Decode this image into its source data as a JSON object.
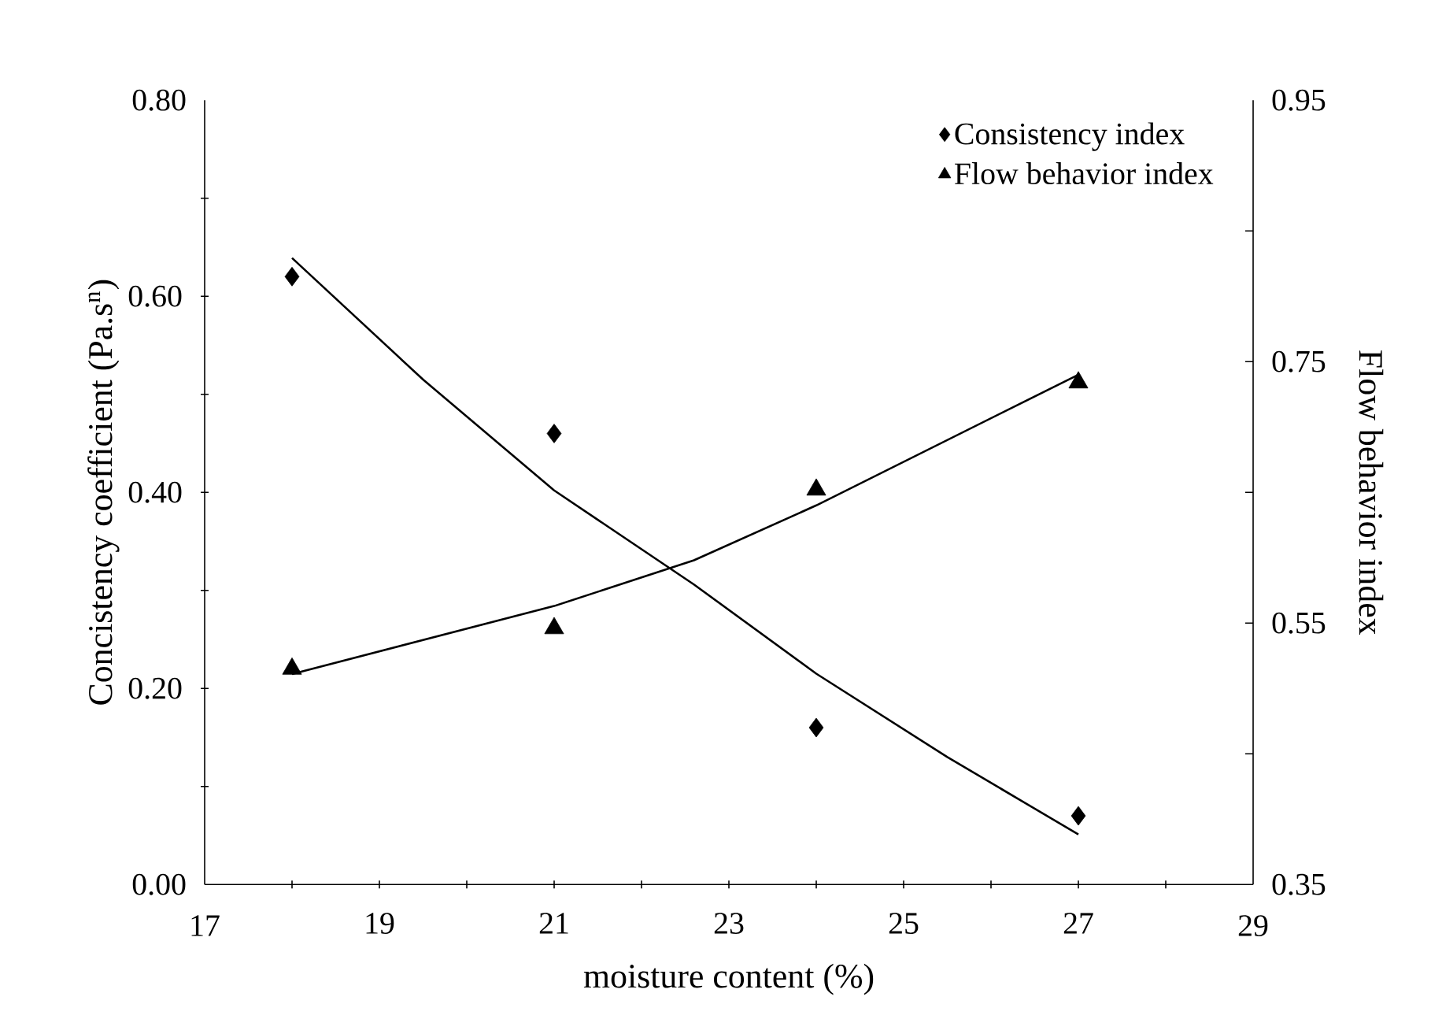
{
  "chart_data": {
    "type": "scatter",
    "xlabel": "moisture content (%)",
    "ylabel": "Concistency coefficient (Pa.s$^{n}$)",
    "y2label": "Flow behavior index",
    "xlim": [
      17,
      29
    ],
    "xticks": [
      17,
      {
        "value": 18,
        "label": null
      },
      19,
      {
        "value": 20,
        "label": null
      },
      21,
      {
        "value": 22,
        "label": null
      },
      23,
      {
        "value": 24,
        "label": null
      },
      25,
      {
        "value": 26,
        "label": null
      },
      27,
      {
        "value": 28,
        "label": null
      },
      29
    ],
    "ylim": [
      0,
      0.8
    ],
    "yticks": [
      {
        "value": 0,
        "label": "0.00"
      },
      {
        "value": 0.1,
        "label": null
      },
      {
        "value": 0.2,
        "label": "0.20"
      },
      {
        "value": 0.3,
        "label": null
      },
      {
        "value": 0.4,
        "label": "0.40"
      },
      {
        "value": 0.5,
        "label": null
      },
      {
        "value": 0.6,
        "label": "0.60"
      },
      {
        "value": 0.7,
        "label": null
      },
      {
        "value": 0.8,
        "label": "0.80"
      }
    ],
    "y2lim": [
      0.35,
      0.95
    ],
    "y2ticks": [
      0.35,
      {
        "value": 0.45,
        "label": null
      },
      0.55,
      {
        "value": 0.65,
        "label": null
      },
      0.75,
      {
        "value": 0.85,
        "label": null
      },
      0.95
    ],
    "legend": "top right",
    "series": [
      {
        "name": "Consistency index",
        "type": "scatter",
        "marker": "diamond",
        "color": "#000000",
        "x": [
          18,
          21,
          24,
          27
        ],
        "values": [
          0.62,
          0.46,
          0.16,
          0.07
        ]
      },
      {
        "name": "Flow behavior index",
        "type": "scatter",
        "marker": "triangle",
        "color": "#000000",
        "axis": "y2",
        "x": [
          18,
          21,
          24,
          27
        ],
        "values": [
          0.515,
          0.546,
          0.652,
          0.734
        ]
      },
      {
        "type": "line",
        "marker": "none",
        "line_style": "solid",
        "color": "#000000",
        "x": [
          18,
          19.5,
          21,
          22.6,
          24,
          25.5,
          27
        ],
        "values": [
          0.639,
          0.515,
          0.402,
          0.306,
          0.215,
          0.13,
          0.051
        ]
      },
      {
        "type": "line",
        "marker": "none",
        "line_style": "solid",
        "color": "#000000",
        "axis": "y2",
        "x": [
          18,
          21,
          22.6,
          24,
          25.5,
          27
        ],
        "values": [
          0.511,
          0.563,
          0.598,
          0.64,
          0.69,
          0.74
        ]
      }
    ]
  }
}
